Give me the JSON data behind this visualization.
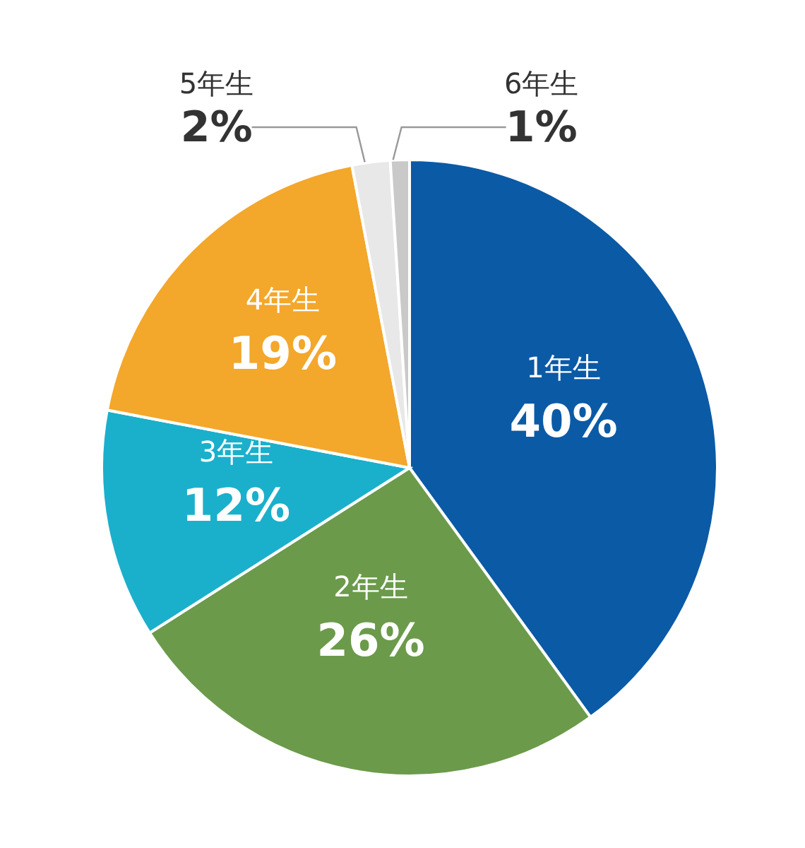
{
  "chart_data": {
    "type": "pie",
    "categories": [
      "1年生",
      "2年生",
      "3年生",
      "4年生",
      "5年生",
      "6年生"
    ],
    "values": [
      40,
      26,
      12,
      19,
      2,
      1
    ],
    "value_labels": [
      "40%",
      "26%",
      "12%",
      "19%",
      "2%",
      "1%"
    ],
    "colors": [
      "#0b5aa6",
      "#6b9a4b",
      "#1ab0cb",
      "#f3a72b",
      "#e8e8e8",
      "#c9c9c9"
    ],
    "legend": false
  }
}
